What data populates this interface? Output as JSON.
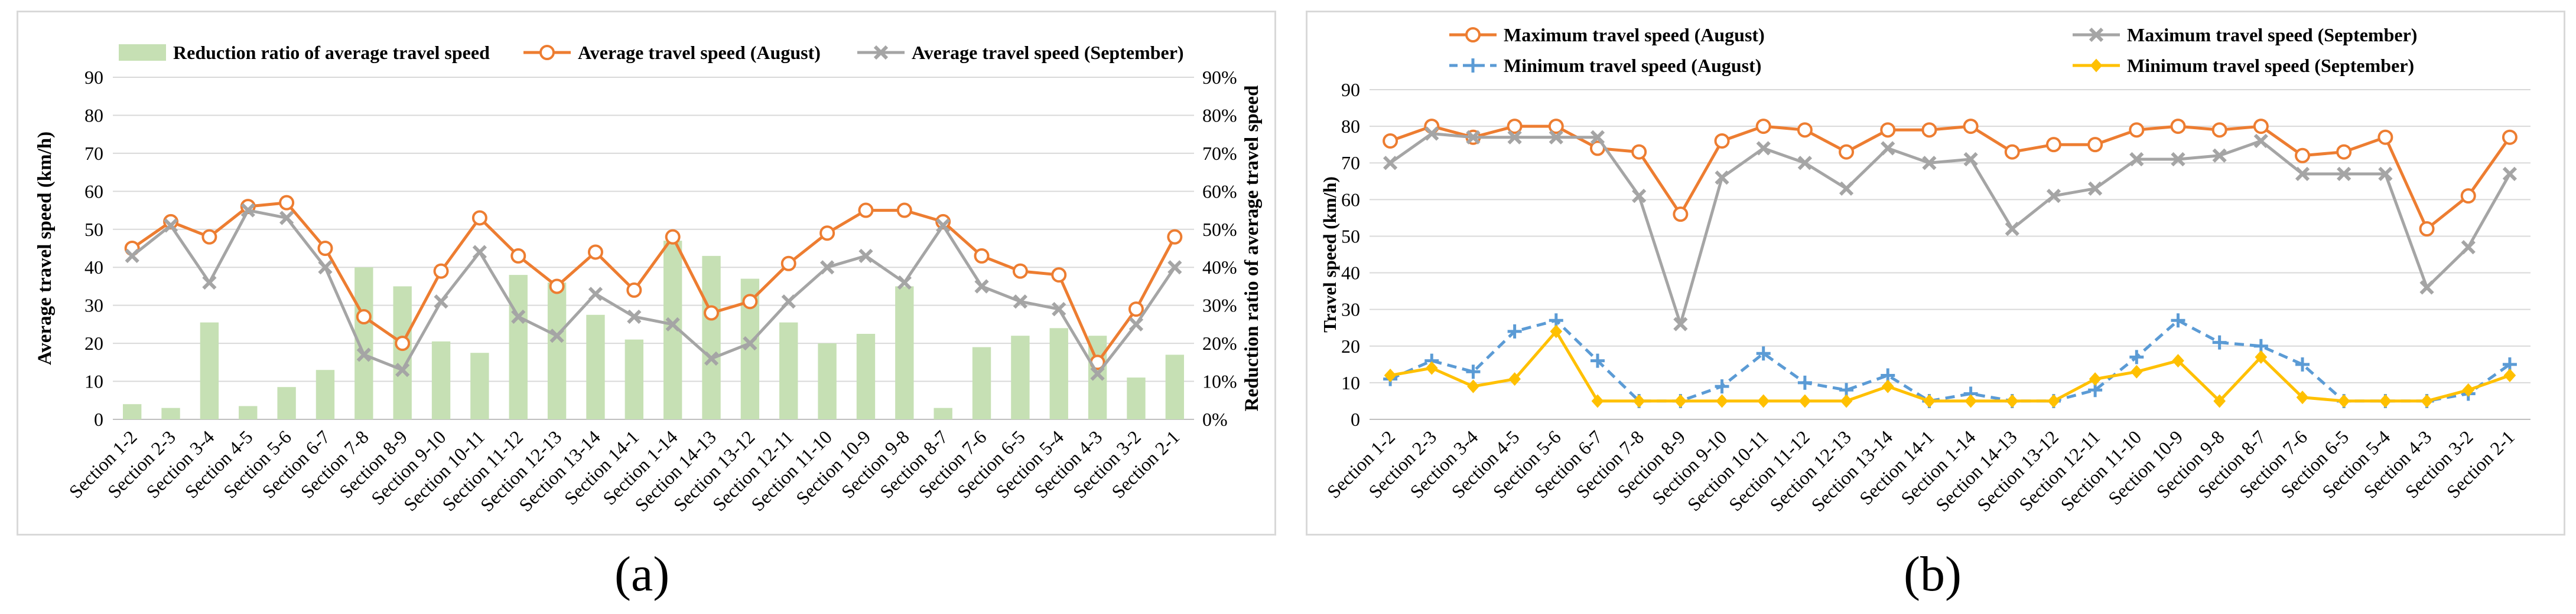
{
  "panel_labels": {
    "a": "(a)",
    "b": "(b)"
  },
  "chart_data": [
    {
      "type": "bar+line",
      "panel": "a",
      "categories": [
        "Section 1-2",
        "Section 2-3",
        "Section 3-4",
        "Section 4-5",
        "Section 5-6",
        "Section 6-7",
        "Section 7-8",
        "Section 8-9",
        "Section 9-10",
        "Section 10-11",
        "Section 11-12",
        "Section 12-13",
        "Section 13-14",
        "Section 14-1",
        "Section 1-14",
        "Section 14-13",
        "Section 13-12",
        "Section 12-11",
        "Section 11-10",
        "Section 10-9",
        "Section 9-8",
        "Section 8-7",
        "Section 7-6",
        "Section 6-5",
        "Section 5-4",
        "Section 4-3",
        "Section 3-2",
        "Section 2-1"
      ],
      "bars": {
        "name": "Reduction ratio of average travel speed",
        "color": "#c6e0b4",
        "values": [
          4,
          3,
          25.5,
          3.5,
          8.5,
          13,
          40,
          35,
          20.5,
          17.5,
          38,
          36,
          27.5,
          21,
          47,
          43,
          37,
          25.5,
          20,
          22.5,
          35,
          3,
          19,
          22,
          24,
          22,
          11,
          17
        ]
      },
      "series": [
        {
          "name": "Average travel speed (August)",
          "color": "#ed7d31",
          "marker": "circle",
          "values": [
            45,
            52,
            48,
            56,
            57,
            45,
            27,
            20,
            39,
            53,
            43,
            35,
            44,
            34,
            48,
            28,
            31,
            41,
            49,
            55,
            55,
            52,
            43,
            39,
            38,
            15,
            29,
            48
          ]
        },
        {
          "name": "Average travel speed (September)",
          "color": "#a5a5a5",
          "marker": "x",
          "values": [
            43,
            51,
            36,
            55,
            53,
            40,
            17,
            13,
            31,
            44,
            27,
            22,
            33,
            27,
            25,
            16,
            20,
            31,
            40,
            43,
            36,
            51,
            35,
            31,
            29,
            12,
            25,
            40
          ]
        }
      ],
      "ylabel": "Average travel speed (km/h)",
      "y2label": "Reduction ratio of average travel speed",
      "ylim": [
        0,
        90
      ],
      "y2lim": [
        0,
        90
      ],
      "yticks": [
        "0",
        "10",
        "20",
        "30",
        "40",
        "50",
        "60",
        "70",
        "80",
        "90"
      ],
      "y2ticks": [
        "0%",
        "10%",
        "20%",
        "30%",
        "40%",
        "50%",
        "60%",
        "70%",
        "80%",
        "90%"
      ],
      "grid": true,
      "legend": "top"
    },
    {
      "type": "line",
      "panel": "b",
      "categories": [
        "Section 1-2",
        "Section 2-3",
        "Section 3-4",
        "Section 4-5",
        "Section 5-6",
        "Section 6-7",
        "Section 7-8",
        "Section 8-9",
        "Section 9-10",
        "Section 10-11",
        "Section 11-12",
        "Section 12-13",
        "Section 13-14",
        "Section 14-1",
        "Section 1-14",
        "Section 14-13",
        "Section 13-12",
        "Section 12-11",
        "Section 11-10",
        "Section 10-9",
        "Section 9-8",
        "Section 8-7",
        "Section 7-6",
        "Section 6-5",
        "Section 5-4",
        "Section 4-3",
        "Section 3-2",
        "Section 2-1"
      ],
      "series": [
        {
          "name": "Maximum travel speed (August)",
          "color": "#ed7d31",
          "marker": "circle",
          "dash": false,
          "values": [
            76,
            80,
            77,
            80,
            80,
            74,
            73,
            56,
            76,
            80,
            79,
            73,
            79,
            79,
            80,
            73,
            75,
            75,
            79,
            80,
            79,
            80,
            72,
            73,
            77,
            52,
            61,
            77
          ]
        },
        {
          "name": "Maximum travel speed (September)",
          "color": "#a5a5a5",
          "marker": "x",
          "dash": false,
          "values": [
            70,
            78,
            77,
            77,
            77,
            77,
            61,
            26,
            66,
            74,
            70,
            63,
            74,
            70,
            71,
            52,
            61,
            63,
            71,
            71,
            72,
            76,
            67,
            67,
            67,
            36,
            47,
            67
          ]
        },
        {
          "name": "Minimum travel speed (August)",
          "color": "#5b9bd5",
          "marker": "plus",
          "dash": true,
          "values": [
            11,
            16,
            13,
            24,
            27,
            16,
            5,
            5,
            9,
            18,
            10,
            8,
            12,
            5,
            7,
            5,
            5,
            8,
            17,
            27,
            21,
            20,
            15,
            5,
            5,
            5,
            7,
            15
          ]
        },
        {
          "name": "Minimum travel speed (September)",
          "color": "#ffc000",
          "marker": "diamond",
          "dash": false,
          "values": [
            12,
            14,
            9,
            11,
            24,
            5,
            5,
            5,
            5,
            5,
            5,
            5,
            9,
            5,
            5,
            5,
            5,
            11,
            13,
            16,
            5,
            17,
            6,
            5,
            5,
            5,
            8,
            12
          ]
        }
      ],
      "ylabel": "Travel speed (km/h)",
      "ylim": [
        0,
        90
      ],
      "yticks": [
        "0",
        "10",
        "20",
        "30",
        "40",
        "50",
        "60",
        "70",
        "80",
        "90"
      ],
      "grid": true,
      "legend": "top"
    }
  ]
}
